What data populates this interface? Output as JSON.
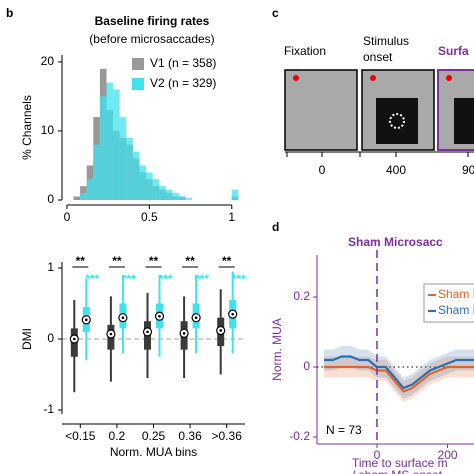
{
  "panels": [
    "b",
    "c",
    "d"
  ],
  "timeline": {
    "labels": [
      [
        "Fixation"
      ],
      [
        "Stimulus",
        "onset"
      ],
      [
        "Surfa"
      ]
    ],
    "ticks": [
      "0",
      "400",
      "90"
    ]
  },
  "chart_data": [
    {
      "type": "histogram",
      "title": "Baseline firing rates",
      "subtitle": "(before microsaccades)",
      "ylabel": "% Channels",
      "bins": [
        0,
        0.04,
        0.08,
        0.12,
        0.16,
        0.2,
        0.24,
        0.28,
        0.32,
        0.36,
        0.4,
        0.44,
        0.48,
        0.52,
        0.56,
        0.6,
        0.64,
        0.68,
        0.72,
        0.76,
        0.8,
        0.84,
        0.88,
        0.92,
        0.96,
        1,
        1.04
      ],
      "series": [
        {
          "name": "V1 (n = 358)",
          "color": "#999999",
          "values": [
            0,
            0.5,
            2,
            5,
            12,
            19,
            13,
            10,
            9,
            8,
            6,
            4,
            3,
            2,
            1.5,
            1,
            0.5,
            0.5,
            0,
            0,
            0,
            0,
            0,
            0,
            0,
            0.5
          ]
        },
        {
          "name": "V2 (n = 329)",
          "color": "#3fe3ee",
          "values": [
            0,
            0,
            1,
            3,
            8,
            15,
            17,
            16,
            12,
            9,
            7,
            5,
            4,
            3,
            2,
            1.5,
            1,
            0.5,
            0.3,
            0,
            0,
            0,
            0,
            0,
            0,
            1.5
          ]
        }
      ],
      "xlim": [
        -0.03,
        1.05
      ],
      "xticks": [
        0,
        0.5,
        1
      ],
      "ylim": [
        0,
        21
      ],
      "yticks": [
        0,
        10,
        20
      ]
    },
    {
      "type": "box",
      "ylabel": "DMI",
      "xlabel": "Norm. MUA bins",
      "categories": [
        "<0.15",
        "0.2",
        "0.25",
        "0.36",
        ">0.36"
      ],
      "ylim": [
        -1,
        1
      ],
      "yticks": [
        -1,
        0,
        1
      ],
      "series": [
        {
          "name": "V1",
          "color": "#3a3a3a",
          "sig": [
            "**",
            "**",
            "**",
            "**",
            "**"
          ],
          "median": [
            0,
            0.07,
            0.1,
            0.08,
            0.12
          ],
          "q1": [
            -0.25,
            -0.15,
            -0.15,
            -0.15,
            -0.1
          ],
          "q3": [
            0.15,
            0.2,
            0.25,
            0.25,
            0.3
          ],
          "whisker_low": [
            -0.75,
            -0.6,
            -0.55,
            -0.55,
            -0.5
          ],
          "whisker_high": [
            0.55,
            0.6,
            0.65,
            0.6,
            0.7
          ]
        },
        {
          "name": "V2",
          "color": "#3fe3ee",
          "sig": [
            "***",
            "***",
            "***",
            "***",
            "***"
          ],
          "median": [
            0.27,
            0.3,
            0.32,
            0.3,
            0.35
          ],
          "q1": [
            0.1,
            0.15,
            0.15,
            0.15,
            0.15
          ],
          "q3": [
            0.45,
            0.5,
            0.5,
            0.5,
            0.55
          ],
          "whisker_low": [
            -0.3,
            -0.2,
            -0.25,
            -0.2,
            -0.2
          ],
          "whisker_high": [
            0.85,
            0.9,
            0.9,
            0.9,
            0.95
          ]
        }
      ]
    },
    {
      "type": "line",
      "title": "Sham Microsacc",
      "ylabel": "Norm. MUA",
      "xlabel": [
        "Time to surface m",
        "/ sham MS onset"
      ],
      "annotation": "N = 73",
      "x": [
        -150,
        -125,
        -100,
        -75,
        -50,
        -25,
        0,
        25,
        50,
        75,
        100,
        125,
        150,
        175,
        200,
        225,
        250,
        275
      ],
      "series": [
        {
          "name": "Sham M",
          "color": "#e8622a",
          "values": [
            0,
            0,
            0,
            0,
            0,
            0,
            -0.01,
            -0.01,
            -0.04,
            -0.07,
            -0.06,
            -0.04,
            -0.02,
            -0.01,
            0,
            0,
            0,
            0
          ],
          "error": [
            0.03,
            0.03,
            0.03,
            0.03,
            0.03,
            0.03,
            0.03,
            0.03,
            0.03,
            0.03,
            0.03,
            0.03,
            0.03,
            0.03,
            0.03,
            0.03,
            0.03,
            0.03
          ]
        },
        {
          "name": "Sham M",
          "color": "#2a6fb0",
          "values": [
            0.02,
            0.02,
            0.03,
            0.03,
            0.02,
            0.02,
            0,
            0,
            -0.03,
            -0.06,
            -0.05,
            -0.03,
            -0.01,
            0,
            0.01,
            0.02,
            0.02,
            0.02
          ],
          "error": [
            0.03,
            0.03,
            0.03,
            0.03,
            0.03,
            0.03,
            0.03,
            0.03,
            0.03,
            0.03,
            0.03,
            0.03,
            0.03,
            0.03,
            0.03,
            0.03,
            0.03,
            0.03
          ]
        }
      ],
      "xlim": [
        -170,
        275
      ],
      "xticks": [
        0,
        200
      ],
      "ylim": [
        -0.22,
        0.32
      ],
      "yticks": [
        -0.2,
        0,
        0.2
      ]
    }
  ]
}
